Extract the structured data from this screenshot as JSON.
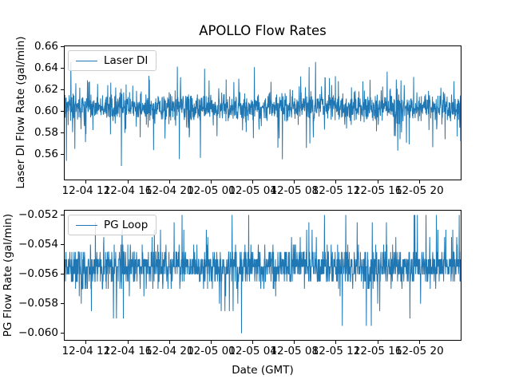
{
  "figure": {
    "title": "APOLLO Flow Rates",
    "xlabel": "Date (GMT)",
    "background": "#ffffff"
  },
  "chart_data": [
    {
      "type": "line",
      "name": "laser-di",
      "ylabel": "Laser DI Flow Rate (gal/min)",
      "legend": "Laser DI",
      "legend_position": "upper-left",
      "color": "#1f77b4",
      "grid": false,
      "ylim": [
        0.537,
        0.66
      ],
      "yticks": [
        0.66,
        0.64,
        0.62,
        0.6,
        0.58,
        0.56
      ],
      "ytick_labels": [
        "0.66",
        "0.64",
        "0.62",
        "0.60",
        "0.58",
        "0.56"
      ],
      "xtick_labels": [
        "12-04 12",
        "12-04 16",
        "12-04 20",
        "12-05 00",
        "12-05 04",
        "12-05 08",
        "12-05 12",
        "12-05 16",
        "12-05 20"
      ],
      "observed": {
        "description": "dense high-frequency noise",
        "center": 0.604,
        "dense_band": [
          0.59,
          0.617
        ],
        "spike_max": 0.645,
        "spike_min": 0.549
      },
      "signal": {
        "kind": "continuous",
        "n": 1600,
        "seed": 3,
        "mean": 0.6035,
        "jitter": 0.013,
        "spike_prob": 0.2,
        "spike_scale": 0.009,
        "spike_up_cap": 0.042,
        "spike_down_cap": 0.056,
        "min": 0.5495,
        "max": 0.6455
      }
    },
    {
      "type": "line",
      "name": "pg-loop",
      "ylabel": "PG Flow Rate (gal/min)",
      "legend": "PG Loop",
      "legend_position": "upper-left",
      "color": "#1f77b4",
      "grid": false,
      "ylim": [
        -0.06045,
        -0.05171
      ],
      "yticks": [
        -0.052,
        -0.054,
        -0.056,
        -0.058,
        -0.06
      ],
      "ytick_labels": [
        "−0.052",
        "−0.054",
        "−0.056",
        "−0.058",
        "−0.060"
      ],
      "xtick_labels": [
        "12-04 12",
        "12-04 16",
        "12-04 20",
        "12-05 00",
        "12-05 04",
        "12-05 08",
        "12-05 12",
        "12-05 16",
        "12-05 20"
      ],
      "observed": {
        "description": "quantized noisy signal, steps of 0.0005",
        "center": -0.0555,
        "dense_band": [
          -0.057,
          -0.054
        ],
        "spike_max": -0.052,
        "spike_min": -0.06
      },
      "signal": {
        "kind": "quantized",
        "n": 1600,
        "seed": 11,
        "base": -0.0555,
        "quantum": 0.0005,
        "sigma_levels": 2.2,
        "tail_prob": 0.07,
        "tail_min": 2,
        "tail_span": 6,
        "level_min": -9,
        "level_max": 7
      }
    }
  ]
}
